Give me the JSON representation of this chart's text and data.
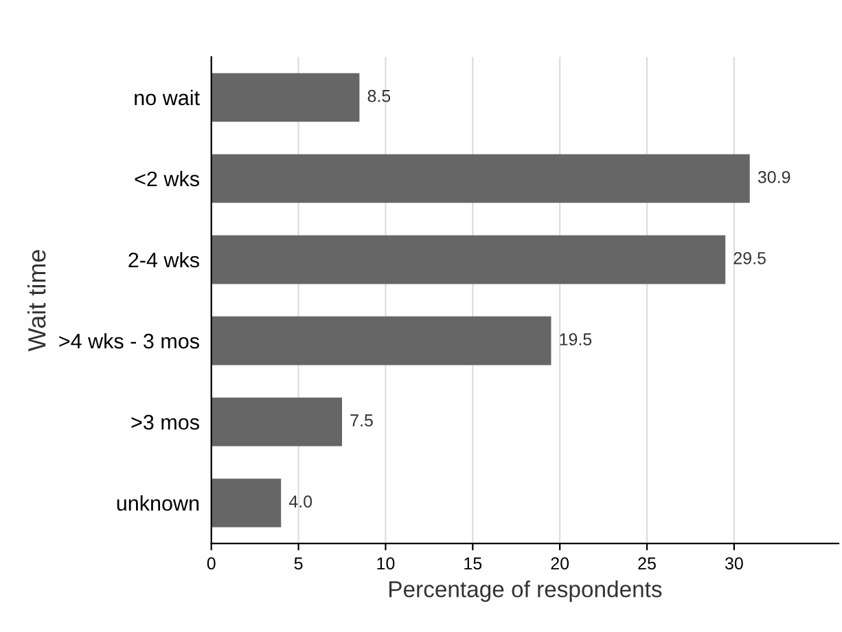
{
  "chart_data": {
    "type": "bar",
    "orientation": "horizontal",
    "xlabel": "Percentage of respondents",
    "ylabel": "Wait time",
    "categories": [
      "no wait",
      "<2 wks",
      "2-4 wks",
      ">4 wks - 3 mos",
      ">3 mos",
      "unknown"
    ],
    "values": [
      8.5,
      30.9,
      29.5,
      19.5,
      7.5,
      4.0
    ],
    "value_labels": [
      "8.5",
      "30.9",
      "29.5",
      "19.5",
      "7.5",
      "4.0"
    ],
    "color": "#666666",
    "xlim": [
      0,
      36
    ],
    "xticks": [
      0,
      5,
      10,
      15,
      20,
      25,
      30
    ],
    "grid": "x",
    "legend": false
  }
}
